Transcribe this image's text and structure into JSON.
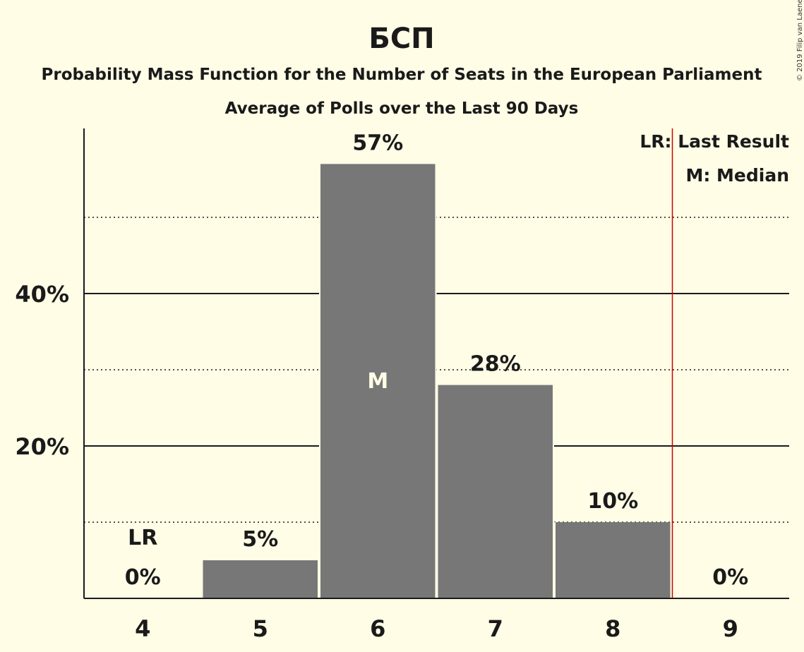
{
  "chart_data": {
    "type": "bar",
    "title": "БСП",
    "subtitle": "Probability Mass Function for the Number of Seats in the European Parliament",
    "subtitle2": "Average of Polls over the Last 90 Days",
    "categories": [
      "4",
      "5",
      "6",
      "7",
      "8",
      "9"
    ],
    "values": [
      0,
      5,
      57,
      28,
      10,
      0
    ],
    "value_labels": [
      "0%",
      "5%",
      "57%",
      "28%",
      "10%",
      "0%"
    ],
    "ylim": [
      0,
      62
    ],
    "y_ticks": [
      20,
      40
    ],
    "y_tick_labels": [
      "20%",
      "40%"
    ],
    "minor_gridlines": [
      10,
      30,
      50
    ],
    "last_result_category": "4",
    "last_result_marker": "LR",
    "median_category": "6",
    "median_marker": "M",
    "majority_line_after_category": "8",
    "legend": {
      "position": "top-right",
      "items": [
        "LR: Last Result",
        "M: Median"
      ]
    },
    "copyright": "© 2019 Filip van Laenen",
    "colors": {
      "background": "#FFFDE6",
      "bar": "#777777",
      "axis": "#1a1a1a",
      "majority_line": "#CC0000"
    }
  }
}
